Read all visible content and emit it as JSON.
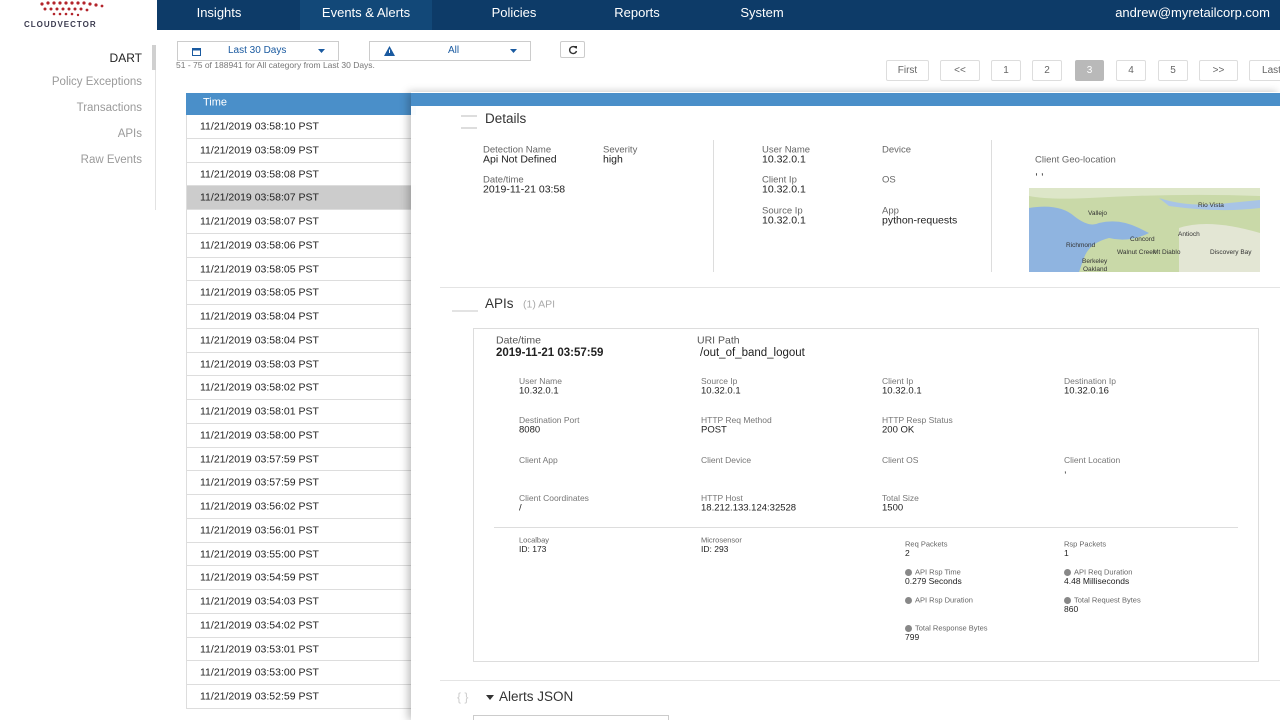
{
  "nav": {
    "logo": "CLOUDVECTOR",
    "items": [
      "Insights",
      "Events & Alerts",
      "Policies",
      "Reports",
      "System"
    ],
    "active": "Events & Alerts",
    "user": "andrew@myretailcorp.com"
  },
  "sidebar": {
    "items": [
      "DART",
      "Policy Exceptions",
      "Transactions",
      "APIs",
      "Raw Events"
    ],
    "active": "DART"
  },
  "filters": {
    "date_range": "Last 30 Days",
    "category": "All",
    "summary": "51 - 75 of 188941 for All category from Last 30 Days."
  },
  "pagination": {
    "items": [
      "First",
      "<<",
      "1",
      "2",
      "3",
      "4",
      "5",
      ">>",
      "Last"
    ],
    "active": "3"
  },
  "table": {
    "header": "Time",
    "selected": 3,
    "rows": [
      "11/21/2019 03:58:10 PST",
      "11/21/2019 03:58:09 PST",
      "11/21/2019 03:58:08 PST",
      "11/21/2019 03:58:07 PST",
      "11/21/2019 03:58:07 PST",
      "11/21/2019 03:58:06 PST",
      "11/21/2019 03:58:05 PST",
      "11/21/2019 03:58:05 PST",
      "11/21/2019 03:58:04 PST",
      "11/21/2019 03:58:04 PST",
      "11/21/2019 03:58:03 PST",
      "11/21/2019 03:58:02 PST",
      "11/21/2019 03:58:01 PST",
      "11/21/2019 03:58:00 PST",
      "11/21/2019 03:57:59 PST",
      "11/21/2019 03:57:59 PST",
      "11/21/2019 03:56:02 PST",
      "11/21/2019 03:56:01 PST",
      "11/21/2019 03:55:00 PST",
      "11/21/2019 03:54:59 PST",
      "11/21/2019 03:54:03 PST",
      "11/21/2019 03:54:02 PST",
      "11/21/2019 03:53:01 PST",
      "11/21/2019 03:53:00 PST",
      "11/21/2019 03:52:59 PST"
    ]
  },
  "details": {
    "title": "Details",
    "fields": [
      {
        "label": "Detection Name",
        "value": "Api Not Defined"
      },
      {
        "label": "Severity",
        "value": "high"
      },
      {
        "label": "Date/time",
        "value": "2019-11-21 03:58"
      },
      {
        "label": "User Name",
        "value": "10.32.0.1"
      },
      {
        "label": "Client Ip",
        "value": "10.32.0.1"
      },
      {
        "label": "Source Ip",
        "value": "10.32.0.1"
      },
      {
        "label": "Device",
        "value": ""
      },
      {
        "label": "OS",
        "value": ""
      },
      {
        "label": "App",
        "value": "python-requests"
      },
      {
        "label": "Client Geo-location",
        "value": ", ,"
      }
    ],
    "map_labels": [
      "Vallejo",
      "Rio Vista",
      "Concord",
      "Antioch",
      "Richmond",
      "Walnut Creek",
      "Mt Diablo",
      "Discovery Bay",
      "Berkeley",
      "Oakland"
    ]
  },
  "apis": {
    "title": "APIs",
    "count": "(1) API",
    "head": [
      {
        "label": "Date/time",
        "value": "2019-11-21 03:57:59"
      },
      {
        "label": "URI Path",
        "value": "/out_of_band_logout"
      }
    ],
    "fields": [
      {
        "label": "User Name",
        "value": "10.32.0.1"
      },
      {
        "label": "Source Ip",
        "value": "10.32.0.1"
      },
      {
        "label": "Client Ip",
        "value": "10.32.0.1"
      },
      {
        "label": "Destination Ip",
        "value": "10.32.0.16"
      },
      {
        "label": "Destination Port",
        "value": "8080"
      },
      {
        "label": "HTTP Req Method",
        "value": "POST"
      },
      {
        "label": "HTTP Resp Status",
        "value": "200 OK"
      },
      {
        "label": "Client App",
        "value": ""
      },
      {
        "label": "Client Device",
        "value": ""
      },
      {
        "label": "Client OS",
        "value": ""
      },
      {
        "label": "Client Location",
        "value": ","
      },
      {
        "label": "Client Coordinates",
        "value": "/"
      },
      {
        "label": "HTTP Host",
        "value": "18.212.133.124:32528"
      },
      {
        "label": "Total Size",
        "value": "1500"
      }
    ],
    "metrics": [
      {
        "label": "Localbay",
        "value": "ID: 173"
      },
      {
        "label": "Microsensor",
        "value": "ID: 293"
      },
      {
        "label": "Req Packets",
        "value": "2"
      },
      {
        "label": "Rsp Packets",
        "value": "1"
      },
      {
        "label": "API Rsp Time",
        "value": "0.279 Seconds"
      },
      {
        "label": "API Req Duration",
        "value": "4.48 Milliseconds"
      },
      {
        "label": "API Rsp Duration",
        "value": ""
      },
      {
        "label": "Total Request Bytes",
        "value": "860"
      },
      {
        "label": "Total Response Bytes",
        "value": "799"
      }
    ]
  },
  "alerts_json": "Alerts JSON"
}
